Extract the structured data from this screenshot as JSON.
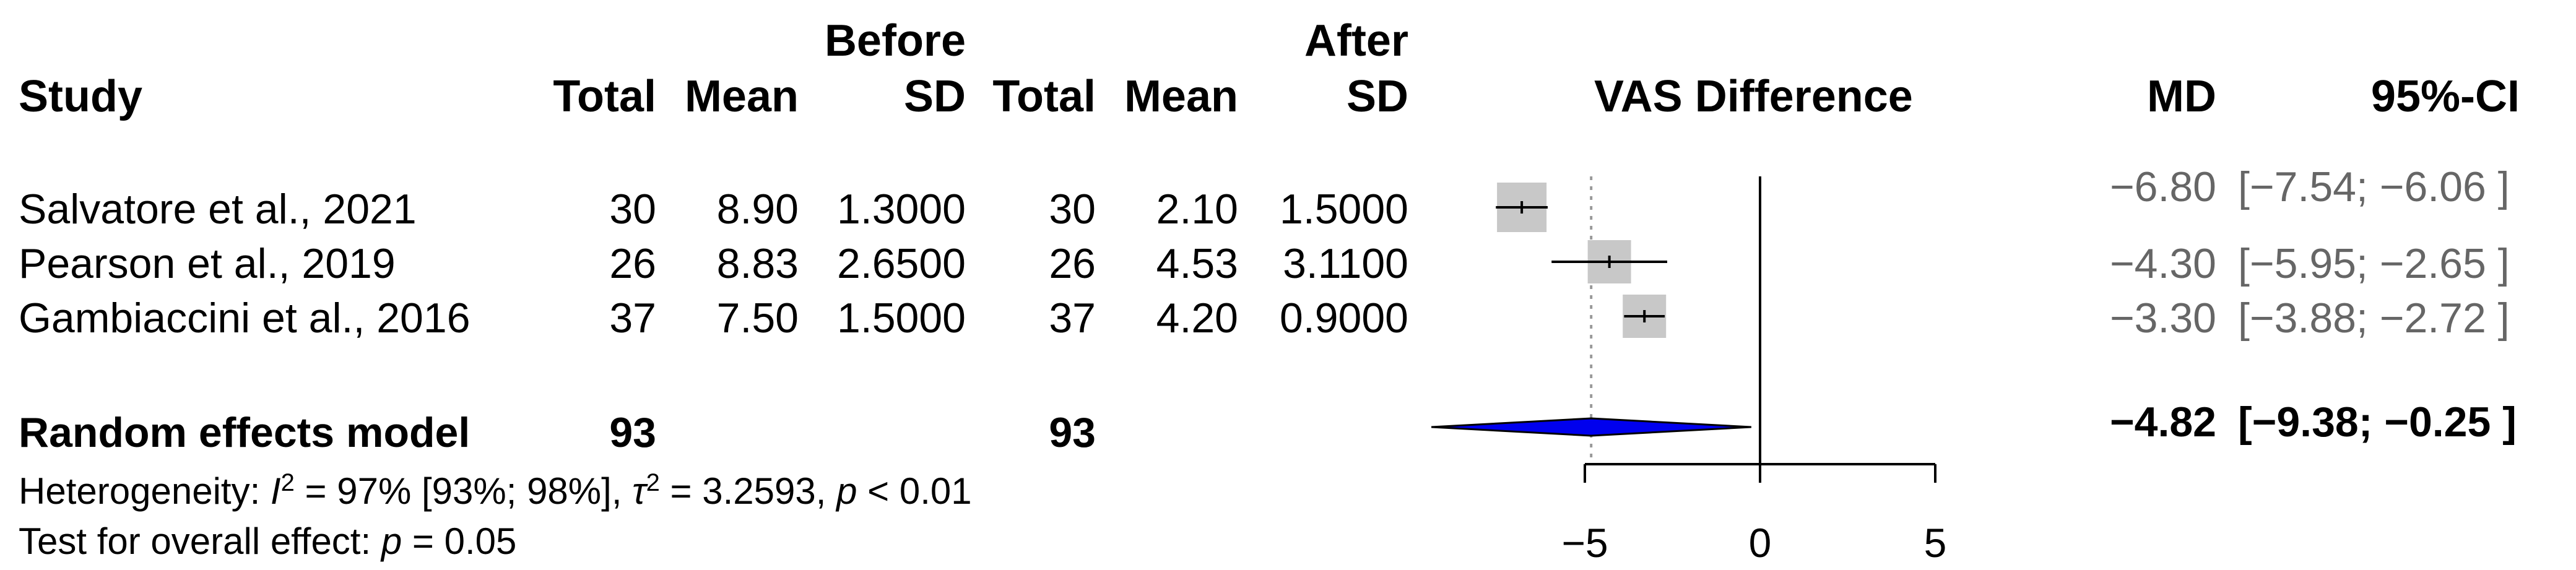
{
  "headers": {
    "group_before": "Before",
    "group_after": "After",
    "study": "Study",
    "total_before": "Total",
    "mean_before": "Mean",
    "sd_before": "SD",
    "total_after": "Total",
    "mean_after": "Mean",
    "sd_after": "SD",
    "plot_title": "VAS Difference",
    "md": "MD",
    "ci": "95%-CI"
  },
  "studies": [
    {
      "study": "Salvatore et al., 2021",
      "total_before": "30",
      "mean_before": "8.90",
      "sd_before": "1.3000",
      "total_after": "30",
      "mean_after": "2.10",
      "sd_after": "1.5000",
      "md": "−6.80",
      "ci": "[−7.54; −6.06 ]"
    },
    {
      "study": "Pearson et al., 2019",
      "total_before": "26",
      "mean_before": "8.83",
      "sd_before": "2.6500",
      "total_after": "26",
      "mean_after": "4.53",
      "sd_after": "3.1100",
      "md": "−4.30",
      "ci": "[−5.95; −2.65 ]"
    },
    {
      "study": "Gambiaccini et al., 2016",
      "total_before": "37",
      "mean_before": "7.50",
      "sd_before": "1.5000",
      "total_after": "37",
      "mean_after": "4.20",
      "sd_after": "0.9000",
      "md": "−3.30",
      "ci": "[−3.88; −2.72 ]"
    }
  ],
  "pooled": {
    "label": "Random effects model",
    "total_before": "93",
    "total_after": "93",
    "md": "−4.82",
    "ci": "[−9.38; −0.25 ]"
  },
  "heterogeneity": {
    "prefix": "Heterogeneity: ",
    "i2_symbol": "I",
    "i2_text": " = 97% [93%; 98%], ",
    "tau2_symbol": "τ",
    "tau2_text": " = 3.2593, ",
    "p_symbol": "p",
    "p_text": " < 0.01"
  },
  "overall_effect": {
    "prefix": "Test for overall effect:  ",
    "p_symbol": "p",
    "p_text": " = 0.05"
  },
  "colors": {
    "square": "#c8c8c8",
    "diamond": "#0000ee",
    "ref_dotted": "#999999"
  },
  "chart_data": {
    "type": "forest",
    "title": "VAS Difference",
    "xlim": [
      -9.5,
      5
    ],
    "xticks": [
      -5,
      0,
      5
    ],
    "reference_line": 0,
    "pooled_line": -4.82,
    "studies": [
      {
        "name": "Salvatore et al., 2021",
        "md": -6.8,
        "lower": -7.54,
        "upper": -6.06
      },
      {
        "name": "Pearson et al., 2019",
        "md": -4.3,
        "lower": -5.95,
        "upper": -2.65
      },
      {
        "name": "Gambiaccini et al., 2016",
        "md": -3.3,
        "lower": -3.88,
        "upper": -2.72
      }
    ],
    "pooled": {
      "name": "Random effects model",
      "md": -4.82,
      "lower": -9.38,
      "upper": -0.25
    }
  }
}
